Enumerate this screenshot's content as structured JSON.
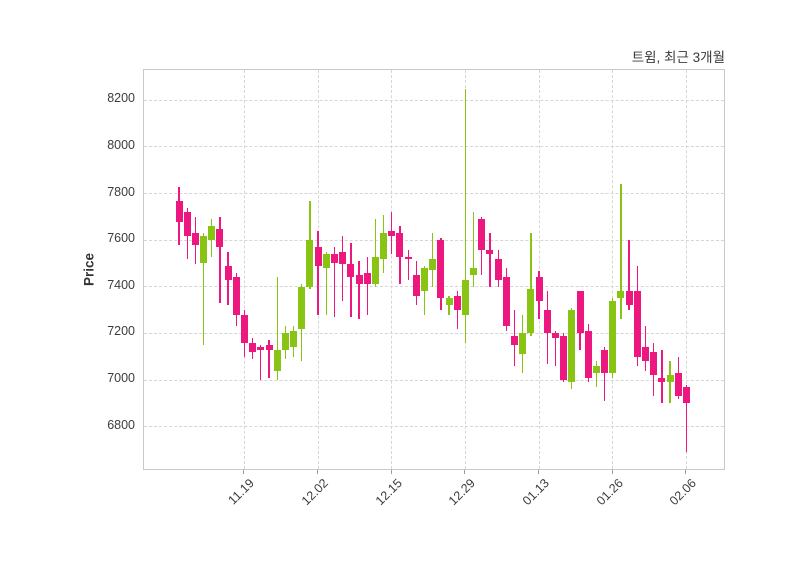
{
  "title": "트윔, 최근 3개월",
  "y_axis": {
    "label": "Price",
    "ticks": [
      6800,
      7000,
      7200,
      7400,
      7600,
      7800,
      8000,
      8200
    ]
  },
  "x_axis": {
    "ticks": [
      {
        "label": "11.19",
        "index": 8
      },
      {
        "label": "12.02",
        "index": 17
      },
      {
        "label": "12.15",
        "index": 26
      },
      {
        "label": "12.29",
        "index": 35
      },
      {
        "label": "01.13",
        "index": 44
      },
      {
        "label": "01.26",
        "index": 53
      },
      {
        "label": "02.06",
        "index": 62
      }
    ]
  },
  "colors": {
    "up": "#87c413",
    "down": "#ec187f",
    "grid": "#d6d6d6",
    "spine": "#c9c9c9",
    "text": "#3c3c3c"
  },
  "chart_data": {
    "type": "candlestick",
    "title": "트윔, 최근 3개월",
    "ylabel": "Price",
    "ylim": [
      6610,
      8330
    ],
    "grid": true,
    "columns": [
      "open",
      "high",
      "low",
      "close"
    ],
    "candles": [
      [
        7770,
        7830,
        7580,
        7680
      ],
      [
        7720,
        7740,
        7520,
        7620
      ],
      [
        7630,
        7700,
        7500,
        7580
      ],
      [
        7500,
        7630,
        7150,
        7620
      ],
      [
        7600,
        7690,
        7530,
        7660
      ],
      [
        7650,
        7700,
        7330,
        7570
      ],
      [
        7490,
        7550,
        7320,
        7430
      ],
      [
        7440,
        7460,
        7230,
        7280
      ],
      [
        7280,
        7300,
        7100,
        7160
      ],
      [
        7160,
        7180,
        7090,
        7120
      ],
      [
        7140,
        7150,
        7000,
        7130
      ],
      [
        7150,
        7170,
        7010,
        7130
      ],
      [
        7040,
        7440,
        7000,
        7130
      ],
      [
        7130,
        7230,
        7090,
        7200
      ],
      [
        7140,
        7230,
        7100,
        7210
      ],
      [
        7220,
        7410,
        7080,
        7400
      ],
      [
        7400,
        7770,
        7390,
        7600
      ],
      [
        7570,
        7640,
        7280,
        7490
      ],
      [
        7480,
        7550,
        7280,
        7540
      ],
      [
        7540,
        7570,
        7270,
        7500
      ],
      [
        7550,
        7620,
        7340,
        7500
      ],
      [
        7500,
        7590,
        7270,
        7440
      ],
      [
        7450,
        7510,
        7260,
        7410
      ],
      [
        7460,
        7530,
        7280,
        7410
      ],
      [
        7410,
        7690,
        7400,
        7530
      ],
      [
        7520,
        7710,
        7460,
        7630
      ],
      [
        7640,
        7720,
        7540,
        7620
      ],
      [
        7630,
        7660,
        7410,
        7530
      ],
      [
        7530,
        7560,
        7430,
        7520
      ],
      [
        7450,
        7510,
        7320,
        7360
      ],
      [
        7380,
        7490,
        7280,
        7480
      ],
      [
        7470,
        7630,
        7400,
        7520
      ],
      [
        7600,
        7610,
        7300,
        7350
      ],
      [
        7320,
        7360,
        7280,
        7350
      ],
      [
        7360,
        7380,
        7220,
        7300
      ],
      [
        7280,
        8250,
        7160,
        7430
      ],
      [
        7450,
        7720,
        7400,
        7480
      ],
      [
        7690,
        7700,
        7450,
        7560
      ],
      [
        7560,
        7630,
        7400,
        7540
      ],
      [
        7520,
        7560,
        7400,
        7430
      ],
      [
        7440,
        7480,
        7210,
        7230
      ],
      [
        7190,
        7300,
        7060,
        7150
      ],
      [
        7110,
        7280,
        7030,
        7200
      ],
      [
        7200,
        7630,
        7190,
        7390
      ],
      [
        7440,
        7470,
        7260,
        7340
      ],
      [
        7300,
        7380,
        7070,
        7200
      ],
      [
        7200,
        7210,
        7060,
        7180
      ],
      [
        7190,
        7200,
        6990,
        7000
      ],
      [
        6990,
        7310,
        6960,
        7300
      ],
      [
        7380,
        7380,
        7130,
        7200
      ],
      [
        7210,
        7240,
        6990,
        7010
      ],
      [
        7030,
        7080,
        6970,
        7060
      ],
      [
        7130,
        7140,
        6910,
        7030
      ],
      [
        7030,
        7350,
        7010,
        7340
      ],
      [
        7350,
        7840,
        7260,
        7380
      ],
      [
        7380,
        7600,
        7300,
        7320
      ],
      [
        7380,
        7490,
        7060,
        7100
      ],
      [
        7140,
        7230,
        7040,
        7080
      ],
      [
        7120,
        7160,
        6930,
        7020
      ],
      [
        7010,
        7130,
        6900,
        6990
      ],
      [
        6990,
        7080,
        6900,
        7020
      ],
      [
        7030,
        7100,
        6920,
        6930
      ],
      [
        6970,
        6980,
        6690,
        6900
      ]
    ]
  }
}
